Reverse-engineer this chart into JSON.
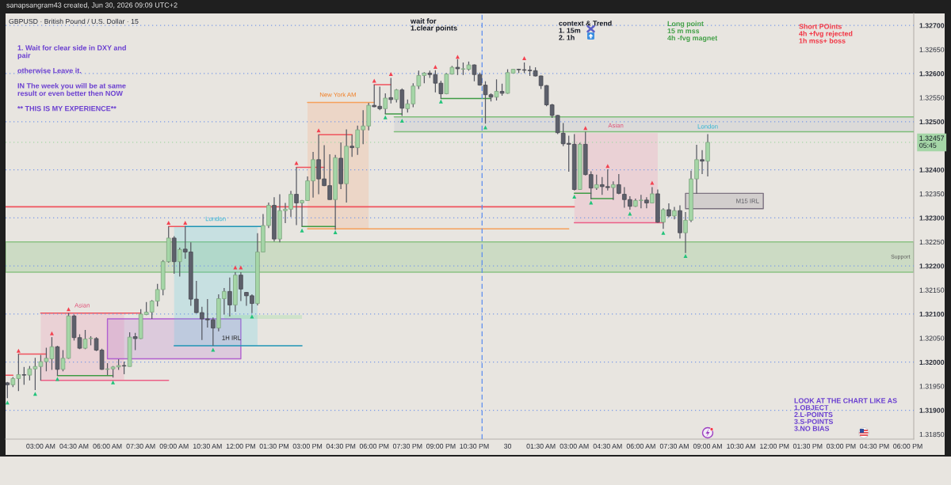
{
  "chart_data": {
    "type": "candlestick",
    "title": "GBPUSD · British Pound / U.S. Dollar · 15",
    "x": [
      "2026-06-29T01:30",
      "2026-06-29T01:45",
      "2026-06-29T02:00",
      "2026-06-29T02:15",
      "2026-06-29T02:30",
      "2026-06-29T02:45",
      "2026-06-29T03:00",
      "2026-06-29T03:15",
      "2026-06-29T03:30",
      "2026-06-29T03:45",
      "2026-06-29T04:00",
      "2026-06-29T04:15",
      "2026-06-29T04:30",
      "2026-06-29T04:45",
      "2026-06-29T05:00",
      "2026-06-29T05:15",
      "2026-06-29T05:30",
      "2026-06-29T05:45",
      "2026-06-29T06:00",
      "2026-06-29T06:15",
      "2026-06-29T06:30",
      "2026-06-29T06:45",
      "2026-06-29T07:00",
      "2026-06-29T07:15",
      "2026-06-29T07:30",
      "2026-06-29T07:45",
      "2026-06-29T08:00",
      "2026-06-29T08:15",
      "2026-06-29T08:30",
      "2026-06-29T08:45",
      "2026-06-29T09:00",
      "2026-06-29T09:15",
      "2026-06-29T09:30",
      "2026-06-29T09:45",
      "2026-06-29T10:00",
      "2026-06-29T10:15",
      "2026-06-29T10:30",
      "2026-06-29T10:45",
      "2026-06-29T11:00",
      "2026-06-29T11:15",
      "2026-06-29T11:30",
      "2026-06-29T11:45",
      "2026-06-29T12:00",
      "2026-06-29T12:15",
      "2026-06-29T12:30",
      "2026-06-29T12:45",
      "2026-06-29T13:00",
      "2026-06-29T13:15",
      "2026-06-29T13:30",
      "2026-06-29T13:45",
      "2026-06-29T14:00",
      "2026-06-29T14:15",
      "2026-06-29T14:30",
      "2026-06-29T14:45",
      "2026-06-29T15:00",
      "2026-06-29T15:15",
      "2026-06-29T15:30",
      "2026-06-29T15:45",
      "2026-06-29T16:00",
      "2026-06-29T16:15",
      "2026-06-29T16:30",
      "2026-06-29T16:45",
      "2026-06-29T17:00",
      "2026-06-29T17:15",
      "2026-06-29T17:30",
      "2026-06-29T17:45",
      "2026-06-29T18:00",
      "2026-06-29T18:15",
      "2026-06-29T18:30",
      "2026-06-29T18:45",
      "2026-06-29T19:00",
      "2026-06-29T19:15",
      "2026-06-29T19:30",
      "2026-06-29T19:45",
      "2026-06-29T20:00",
      "2026-06-29T20:15",
      "2026-06-29T20:30",
      "2026-06-29T20:45",
      "2026-06-29T21:00",
      "2026-06-29T21:15",
      "2026-06-29T21:30",
      "2026-06-29T21:45",
      "2026-06-29T22:00",
      "2026-06-29T22:15",
      "2026-06-29T22:30",
      "2026-06-29T22:45",
      "2026-06-29T23:00",
      "2026-06-29T23:15",
      "2026-06-29T23:30",
      "2026-06-29T23:45",
      "2026-06-30T00:00",
      "2026-06-30T00:15",
      "2026-06-30T00:30",
      "2026-06-30T00:45",
      "2026-06-30T01:00",
      "2026-06-30T01:15",
      "2026-06-30T01:30",
      "2026-06-30T01:45",
      "2026-06-30T02:00",
      "2026-06-30T02:15",
      "2026-06-30T02:30",
      "2026-06-30T02:45",
      "2026-06-30T03:00",
      "2026-06-30T03:15",
      "2026-06-30T03:30",
      "2026-06-30T03:45",
      "2026-06-30T04:00",
      "2026-06-30T04:15",
      "2026-06-30T04:30",
      "2026-06-30T04:45",
      "2026-06-30T05:00",
      "2026-06-30T05:15",
      "2026-06-30T05:30",
      "2026-06-30T05:45",
      "2026-06-30T06:00",
      "2026-06-30T06:15",
      "2026-06-30T06:30",
      "2026-06-30T06:45",
      "2026-06-30T07:00",
      "2026-06-30T07:15",
      "2026-06-30T07:30",
      "2026-06-30T07:45",
      "2026-06-30T08:00",
      "2026-06-30T08:15",
      "2026-06-30T08:30",
      "2026-06-30T08:45",
      "2026-06-30T09:00"
    ],
    "ohlc": [
      [
        1.31957,
        1.31959,
        1.31925,
        1.31953
      ],
      [
        1.31953,
        1.31969,
        1.31948,
        1.31966
      ],
      [
        1.31966,
        1.32017,
        1.3194,
        1.31974
      ],
      [
        1.31974,
        1.3199,
        1.31953,
        1.31973
      ],
      [
        1.31973,
        1.31992,
        1.31962,
        1.31986
      ],
      [
        1.31986,
        1.32009,
        1.31942,
        1.31991
      ],
      [
        1.31991,
        1.32015,
        1.31962,
        1.32001
      ],
      [
        1.32001,
        1.3203,
        1.31981,
        1.32008
      ],
      [
        1.32007,
        1.32052,
        1.31984,
        1.32032
      ],
      [
        1.32032,
        1.32034,
        1.31972,
        1.31985
      ],
      [
        1.31985,
        1.32025,
        1.31981,
        1.32008
      ],
      [
        1.32008,
        1.32102,
        1.32007,
        1.32096
      ],
      [
        1.32096,
        1.32099,
        1.32045,
        1.32051
      ],
      [
        1.32051,
        1.32058,
        1.32027,
        1.32029
      ],
      [
        1.32029,
        1.32067,
        1.32027,
        1.32048
      ],
      [
        1.32049,
        1.32054,
        1.32035,
        1.3205
      ],
      [
        1.32049,
        1.32052,
        1.32023,
        1.32025
      ],
      [
        1.32025,
        1.32028,
        1.31984,
        1.31985
      ],
      [
        1.31985,
        1.31998,
        1.31973,
        1.31986
      ],
      [
        1.31986,
        1.31992,
        1.31968,
        1.3199
      ],
      [
        1.3199,
        1.32006,
        1.31984,
        1.31993
      ],
      [
        1.31993,
        1.32001,
        1.31975,
        1.31992
      ],
      [
        1.31991,
        1.32062,
        1.31991,
        1.32052
      ],
      [
        1.32053,
        1.32061,
        1.32025,
        1.32049
      ],
      [
        1.32049,
        1.3211,
        1.32048,
        1.321
      ],
      [
        1.32099,
        1.32125,
        1.32098,
        1.32104
      ],
      [
        1.32104,
        1.32129,
        1.3209,
        1.32127
      ],
      [
        1.32127,
        1.32163,
        1.32116,
        1.32151
      ],
      [
        1.32151,
        1.32212,
        1.32139,
        1.32209
      ],
      [
        1.32209,
        1.32282,
        1.32207,
        1.32258
      ],
      [
        1.32258,
        1.32262,
        1.32184,
        1.32209
      ],
      [
        1.32209,
        1.32238,
        1.32178,
        1.32234
      ],
      [
        1.32235,
        1.32282,
        1.32215,
        1.32229
      ],
      [
        1.32229,
        1.32249,
        1.32117,
        1.32131
      ],
      [
        1.32131,
        1.32169,
        1.32102,
        1.32103
      ],
      [
        1.32103,
        1.32115,
        1.32046,
        1.3209
      ],
      [
        1.3209,
        1.32131,
        1.32072,
        1.32088
      ],
      [
        1.32088,
        1.32093,
        1.32034,
        1.32071
      ],
      [
        1.32071,
        1.32141,
        1.32064,
        1.32132
      ],
      [
        1.32132,
        1.32154,
        1.32099,
        1.32147
      ],
      [
        1.32147,
        1.32176,
        1.32095,
        1.32119
      ],
      [
        1.32119,
        1.32187,
        1.32105,
        1.32181
      ],
      [
        1.32181,
        1.32187,
        1.32127,
        1.32152
      ],
      [
        1.32145,
        1.32146,
        1.32117,
        1.32138
      ],
      [
        1.32138,
        1.32141,
        1.32102,
        1.32122
      ],
      [
        1.32122,
        1.32268,
        1.32118,
        1.32229
      ],
      [
        1.32229,
        1.32308,
        1.32229,
        1.32284
      ],
      [
        1.32284,
        1.32332,
        1.32279,
        1.32326
      ],
      [
        1.32326,
        1.32343,
        1.32251,
        1.32256
      ],
      [
        1.32256,
        1.32349,
        1.32249,
        1.32315
      ],
      [
        1.32315,
        1.32331,
        1.32289,
        1.32318
      ],
      [
        1.32318,
        1.32356,
        1.32302,
        1.32349
      ],
      [
        1.32349,
        1.32405,
        1.32285,
        1.32331
      ],
      [
        1.32331,
        1.32337,
        1.32282,
        1.32336
      ],
      [
        1.32336,
        1.32386,
        1.32335,
        1.32377
      ],
      [
        1.32377,
        1.32437,
        1.32342,
        1.32421
      ],
      [
        1.32421,
        1.32473,
        1.32349,
        1.32381
      ],
      [
        1.32381,
        1.32451,
        1.32366,
        1.32367
      ],
      [
        1.32367,
        1.32432,
        1.32338,
        1.32338
      ],
      [
        1.32338,
        1.32431,
        1.32275,
        1.32425
      ],
      [
        1.32424,
        1.32457,
        1.3236,
        1.32371
      ],
      [
        1.32371,
        1.32484,
        1.32332,
        1.32449
      ],
      [
        1.32449,
        1.32473,
        1.32427,
        1.32446
      ],
      [
        1.32446,
        1.32492,
        1.32431,
        1.32483
      ],
      [
        1.32483,
        1.32524,
        1.32453,
        1.32491
      ],
      [
        1.32491,
        1.32539,
        1.32482,
        1.32534
      ],
      [
        1.32534,
        1.32577,
        1.3253,
        1.32531
      ],
      [
        1.32532,
        1.32573,
        1.32524,
        1.32527
      ],
      [
        1.32527,
        1.32559,
        1.32516,
        1.32549
      ],
      [
        1.3255,
        1.32591,
        1.32538,
        1.32546
      ],
      [
        1.32546,
        1.32568,
        1.3254,
        1.32566
      ],
      [
        1.32566,
        1.32569,
        1.32512,
        1.32528
      ],
      [
        1.32527,
        1.32546,
        1.32519,
        1.32537
      ],
      [
        1.32537,
        1.3258,
        1.3253,
        1.32574
      ],
      [
        1.32574,
        1.32606,
        1.32568,
        1.32596
      ],
      [
        1.32596,
        1.32603,
        1.3258,
        1.32601
      ],
      [
        1.32601,
        1.32606,
        1.32591,
        1.32598
      ],
      [
        1.32598,
        1.32607,
        1.32561,
        1.3258
      ],
      [
        1.3258,
        1.32585,
        1.32548,
        1.32558
      ],
      [
        1.32558,
        1.32601,
        1.32557,
        1.32599
      ],
      [
        1.32599,
        1.32616,
        1.32598,
        1.32613
      ],
      [
        1.32613,
        1.3263,
        1.32597,
        1.3261
      ],
      [
        1.32609,
        1.32623,
        1.32597,
        1.3261
      ],
      [
        1.32609,
        1.32625,
        1.32606,
        1.32618
      ],
      [
        1.32618,
        1.32619,
        1.32584,
        1.32598
      ],
      [
        1.32598,
        1.32602,
        1.32575,
        1.32576
      ],
      [
        1.32576,
        1.32584,
        1.32496,
        1.32556
      ],
      [
        1.32556,
        1.32559,
        1.32542,
        1.32551
      ],
      [
        1.32551,
        1.32588,
        1.32544,
        1.32563
      ],
      [
        1.32563,
        1.32579,
        1.32554,
        1.32559
      ],
      [
        1.32559,
        1.32609,
        1.32558,
        1.32602
      ],
      [
        1.32601,
        1.32609,
        1.32601,
        1.32609
      ],
      [
        1.32609,
        1.3261,
        1.32601,
        1.32608
      ],
      [
        1.32608,
        1.32623,
        1.32601,
        1.32607
      ],
      [
        1.32607,
        1.32616,
        1.32595,
        1.32606
      ],
      [
        1.32606,
        1.32613,
        1.32594,
        1.32595
      ],
      [
        1.32595,
        1.32596,
        1.32568,
        1.32575
      ],
      [
        1.32575,
        1.32576,
        1.32532,
        1.32535
      ],
      [
        1.32535,
        1.32537,
        1.32508,
        1.32513
      ],
      [
        1.32513,
        1.32514,
        1.32474,
        1.32477
      ],
      [
        1.32476,
        1.32497,
        1.32449,
        1.32454
      ],
      [
        1.32455,
        1.32471,
        1.32396,
        1.32453
      ],
      [
        1.32453,
        1.32474,
        1.32357,
        1.32359
      ],
      [
        1.32359,
        1.32456,
        1.32358,
        1.32453
      ],
      [
        1.32453,
        1.32479,
        1.32388,
        1.3239
      ],
      [
        1.3239,
        1.32397,
        1.32339,
        1.32362
      ],
      [
        1.32362,
        1.3239,
        1.32358,
        1.32369
      ],
      [
        1.32369,
        1.32385,
        1.32348,
        1.32365
      ],
      [
        1.32365,
        1.32401,
        1.32357,
        1.32363
      ],
      [
        1.32363,
        1.32376,
        1.32337,
        1.32369
      ],
      [
        1.32369,
        1.32391,
        1.32349,
        1.32351
      ],
      [
        1.32349,
        1.32364,
        1.32321,
        1.32338
      ],
      [
        1.32338,
        1.32345,
        1.32317,
        1.32324
      ],
      [
        1.32324,
        1.3234,
        1.32323,
        1.32336
      ],
      [
        1.32336,
        1.32348,
        1.3232,
        1.32337
      ],
      [
        1.32337,
        1.32343,
        1.3232,
        1.32331
      ],
      [
        1.32331,
        1.32364,
        1.3233,
        1.3235
      ],
      [
        1.3235,
        1.32359,
        1.3229,
        1.32291
      ],
      [
        1.32291,
        1.3232,
        1.32277,
        1.32317
      ],
      [
        1.32317,
        1.3233,
        1.32301,
        1.32304
      ],
      [
        1.32304,
        1.32323,
        1.32297,
        1.32315
      ],
      [
        1.32315,
        1.32326,
        1.32257,
        1.32269
      ],
      [
        1.32269,
        1.32312,
        1.32227,
        1.32295
      ],
      [
        1.32295,
        1.32398,
        1.32291,
        1.32381
      ],
      [
        1.32381,
        1.32452,
        1.3235,
        1.32421
      ],
      [
        1.32421,
        1.32441,
        1.32391,
        1.32418
      ],
      [
        1.32418,
        1.32474,
        1.32386,
        1.32457
      ]
    ],
    "colors": [
      "#5d606b",
      "#a5d6a7",
      "#a5d6a7",
      "#5d606b",
      "#a5d6a7",
      "#a5d6a7",
      "#a5d6a7",
      "#a5d6a7",
      "#a5d6a7",
      "#5d606b",
      "#a5d6a7",
      "#a5d6a7",
      "#5d606b",
      "#5d606b",
      "#a5d6a7",
      "#a5d6a7",
      "#5d606b",
      "#5d606b",
      "#a5d6a7",
      "#a5d6a7",
      "#a5d6a7",
      "#5d606b",
      "#a5d6a7",
      "#5d606b",
      "#a5d6a7",
      "#a5d6a7",
      "#a5d6a7",
      "#a5d6a7",
      "#a5d6a7",
      "#a5d6a7",
      "#5d606b",
      "#a5d6a7",
      "#5d606b",
      "#5d606b",
      "#5d606b",
      "#5d606b",
      "#5d606b",
      "#5d606b",
      "#a5d6a7",
      "#a5d6a7",
      "#5d606b",
      "#a5d6a7",
      "#5d606b",
      "#5d606b",
      "#5d606b",
      "#a5d6a7",
      "#a5d6a7",
      "#a5d6a7",
      "#5d606b",
      "#a5d6a7",
      "#a5d6a7",
      "#a5d6a7",
      "#5d606b",
      "#a5d6a7",
      "#a5d6a7",
      "#a5d6a7",
      "#5d606b",
      "#5d606b",
      "#5d606b",
      "#a5d6a7",
      "#5d606b",
      "#a5d6a7",
      "#5d606b",
      "#a5d6a7",
      "#a5d6a7",
      "#a5d6a7",
      "#5d606b",
      "#5d606b",
      "#a5d6a7",
      "#5d606b",
      "#a5d6a7",
      "#5d606b",
      "#a5d6a7",
      "#a5d6a7",
      "#a5d6a7",
      "#a5d6a7",
      "#5d606b",
      "#5d606b",
      "#5d606b",
      "#a5d6a7",
      "#a5d6a7",
      "#5d606b",
      "#a5d6a7",
      "#a5d6a7",
      "#5d606b",
      "#5d606b",
      "#5d606b",
      "#5d606b",
      "#a5d6a7",
      "#5d606b",
      "#a5d6a7",
      "#a5d6a7",
      "#5d606b",
      "#5d606b",
      "#5d606b",
      "#5d606b",
      "#5d606b",
      "#5d606b",
      "#5d606b",
      "#5d606b",
      "#5d606b",
      "#5d606b",
      "#5d606b",
      "#a5d6a7",
      "#5d606b",
      "#5d606b",
      "#a5d6a7",
      "#5d606b",
      "#5d606b",
      "#a5d6a7",
      "#5d606b",
      "#5d606b",
      "#5d606b",
      "#a5d6a7",
      "#a5d6a7",
      "#5d606b",
      "#a5d6a7",
      "#5d606b",
      "#a5d6a7",
      "#5d606b",
      "#a5d6a7",
      "#5d606b",
      "#a5d6a7",
      "#a5d6a7",
      "#a5d6a7",
      "#5d606b",
      "#a5d6a7"
    ],
    "series": [
      {
        "type": "line",
        "x": [
          "2026-06-29T03:00",
          "2026-06-29T06:45"
        ],
        "values": [
          null,
          null
        ],
        "lower": [
          1.31962,
          1.31962
        ],
        "upper": [
          1.32101,
          1.32101
        ],
        "color": "#f781a9"
      },
      {
        "type": "line",
        "x": [
          "2026-06-29T06:00",
          "2026-06-29T12:00"
        ],
        "values": [
          null,
          null
        ],
        "lower": [
          1.32007,
          1.32007
        ],
        "upper": [
          1.3209,
          1.3209
        ],
        "color": "#b15fcf",
        "line_style": "solid"
      },
      {
        "type": "line",
        "x": [
          "2026-06-29T09:00",
          "2026-06-29T12:45"
        ],
        "values": [
          null,
          null
        ],
        "lower": [
          1.32034,
          1.32034
        ],
        "upper": [
          1.32282,
          1.32282
        ],
        "color": "#48cce5"
      },
      {
        "type": "line",
        "x": [
          "2026-06-29T11:15",
          "2026-06-29T14:45"
        ],
        "values": [
          null,
          null
        ],
        "lower": [
          1.3209,
          1.3209
        ],
        "upper": [
          1.32098,
          1.32098
        ],
        "color": "#6bd66d"
      },
      {
        "type": "line",
        "x": [
          "2026-06-29T15:00",
          "2026-06-29T17:45"
        ],
        "values": [
          null,
          null
        ],
        "lower": [
          1.32277,
          1.32277
        ],
        "upper": [
          1.3254,
          1.3254
        ],
        "color": "#ff9a63"
      },
      {
        "type": "line",
        "x": [
          "2026-06-29T18:54",
          "2026-06-30T18:16"
        ],
        "values": [
          null,
          null
        ],
        "lower": [
          1.32479,
          1.32479
        ],
        "upper": [
          1.3251,
          1.3251
        ],
        "color": "#acaebd"
      },
      {
        "type": "line",
        "x": [
          "2026-06-30T03:00",
          "2026-06-30T06:45"
        ],
        "values": [
          null,
          null
        ],
        "lower": [
          1.3229,
          1.3229
        ],
        "upper": [
          1.32476,
          1.32476
        ],
        "color": "#f781a9"
      },
      {
        "type": "line",
        "x": [
          "2026-06-30T08:00",
          "2026-06-30T11:30"
        ],
        "values": [
          null,
          null
        ],
        "lower": [
          1.32319,
          1.32319
        ],
        "upper": [
          1.32351,
          1.32351
        ],
        "color": "#7c7280",
        "line_style": "solid"
      },
      {
        "type": "line",
        "x": [
          "2026-06-29T01:25",
          "2026-06-29T01:45"
        ],
        "values": [
          1.31973,
          1.31973
        ],
        "color": "#f0525c"
      },
      {
        "type": "line",
        "x": [
          "2026-06-29T02:00",
          "2026-06-29T03:15"
        ],
        "values": [
          1.32017,
          1.32017
        ],
        "color": "#f0525c"
      },
      {
        "type": "line",
        "x": [
          "2026-06-29T03:00",
          "2026-06-29T07:30"
        ],
        "values": [
          1.32102,
          1.32102
        ],
        "color": "#f0525c"
      },
      {
        "type": "line",
        "x": [
          "2026-06-29T03:00",
          "2026-06-29T08:45"
        ],
        "values": [
          1.31962,
          1.31962
        ],
        "color": "#ec5f86"
      },
      {
        "type": "line",
        "x": [
          "2026-06-29T03:45",
          "2026-06-29T06:15"
        ],
        "values": [
          1.31972,
          1.31972
        ],
        "color": "#3f9b45"
      },
      {
        "type": "line",
        "x": [
          "2026-06-29T08:45",
          "2026-06-29T09:30"
        ],
        "values": [
          1.32282,
          1.32282
        ],
        "color": "#f0525c"
      },
      {
        "type": "line",
        "x": [
          "2026-06-29T09:30",
          "2026-06-29T13:00"
        ],
        "values": [
          1.32282,
          1.32282
        ],
        "color": "#1f95b5"
      },
      {
        "type": "line",
        "x": [
          "2026-06-29T09:00",
          "2026-06-29T14:45"
        ],
        "values": [
          1.32034,
          1.32034
        ],
        "color": "#1f95b5"
      },
      {
        "type": "line",
        "x": [
          "2026-06-29T14:30",
          "2026-06-29T15:45"
        ],
        "values": [
          1.32405,
          1.32405
        ],
        "color": "#f0525c"
      },
      {
        "type": "line",
        "x": [
          "2026-06-29T15:30",
          "2026-06-29T17:00"
        ],
        "values": [
          1.32473,
          1.32473
        ],
        "color": "#f0525c"
      },
      {
        "type": "line",
        "x": [
          "2026-06-29T14:45",
          "2026-06-29T16:15"
        ],
        "values": [
          1.32282,
          1.32282
        ],
        "color": "#3f9b45"
      },
      {
        "type": "line",
        "x": [
          "2026-06-29T15:00",
          "2026-06-29T18:00"
        ],
        "values": [
          1.3254,
          1.3254
        ],
        "color": "#f5a05a"
      },
      {
        "type": "line",
        "x": [
          "2026-06-29T15:00",
          "2026-06-30T02:45"
        ],
        "values": [
          1.32277,
          1.32277
        ],
        "color": "#f5a05a"
      },
      {
        "type": "line",
        "x": [
          "2026-06-29T01:25",
          "2026-06-30T03:00"
        ],
        "values": [
          1.32323,
          1.32323
        ],
        "color": "#f0525c"
      },
      {
        "type": "line",
        "x": [
          "2026-06-29T18:00",
          "2026-06-29T18:45"
        ],
        "values": [
          1.32577,
          1.32577
        ],
        "color": "#f0525c"
      },
      {
        "type": "line",
        "x": [
          "2026-06-29T18:30",
          "2026-06-29T19:15"
        ],
        "values": [
          1.32516,
          1.32516
        ],
        "color": "#3f9b45"
      },
      {
        "type": "line",
        "x": [
          "2026-06-29T21:00",
          "2026-06-29T23:15"
        ],
        "values": [
          1.32548,
          1.32548
        ],
        "color": "#3f9b45"
      },
      {
        "type": "line",
        "x": [
          "2026-06-29T18:54",
          "2026-06-30T18:16"
        ],
        "values": [
          1.3251,
          1.3251
        ],
        "color": "#7dbd78"
      },
      {
        "type": "line",
        "x": [
          "2026-06-29T18:54",
          "2026-06-30T18:16"
        ],
        "values": [
          1.32479,
          1.32479
        ],
        "color": "#7dbd78"
      },
      {
        "type": "line",
        "x": [
          "2026-06-30T03:00",
          "2026-06-30T03:45"
        ],
        "values": [
          1.32351,
          1.32351
        ],
        "color": "#3f9b45"
      },
      {
        "type": "line",
        "x": [
          "2026-06-30T03:45",
          "2026-06-30T04:45"
        ],
        "values": [
          1.3234,
          1.3234
        ],
        "color": "#3f9b45"
      },
      {
        "type": "line",
        "x": [
          "2026-06-30T03:00",
          "2026-06-30T07:00"
        ],
        "values": [
          1.3229,
          1.3229
        ],
        "color": "#ec5f86"
      },
      {
        "type": "scatter",
        "marker": "triangle",
        "color": "#f44250",
        "x": [
          "2026-06-29T02:00",
          "2026-06-29T03:30",
          "2026-06-29T04:15",
          "2026-06-29T08:45",
          "2026-06-29T09:30",
          "2026-06-29T11:45",
          "2026-06-29T12:00",
          "2026-06-29T14:30",
          "2026-06-29T15:30",
          "2026-06-29T18:00",
          "2026-06-29T18:45",
          "2026-06-29T20:45",
          "2026-06-29T21:45",
          "2026-06-30T00:45",
          "2026-06-30T03:30",
          "2026-06-30T04:30",
          "2026-06-30T06:30"
        ],
        "values": [
          1.32024,
          1.3206,
          1.3211,
          1.3229,
          1.3229,
          1.32197,
          1.32197,
          1.32414,
          1.32482,
          1.32585,
          1.32599,
          1.32614,
          1.32635,
          1.32632,
          1.32487,
          1.32408,
          1.32373
        ]
      },
      {
        "type": "scatter",
        "marker": "triangle",
        "color": "#22c37a",
        "x": [
          "2026-06-29T01:30",
          "2026-06-29T02:45",
          "2026-06-29T03:45",
          "2026-06-29T06:15",
          "2026-06-29T10:45",
          "2026-06-29T12:30",
          "2026-06-29T14:45",
          "2026-06-29T16:15",
          "2026-06-29T18:30",
          "2026-06-29T19:15",
          "2026-06-29T21:00",
          "2026-06-29T23:00",
          "2026-06-30T03:00",
          "2026-06-30T03:45",
          "2026-06-30T05:30",
          "2026-06-30T07:00",
          "2026-06-30T08:00"
        ],
        "values": [
          1.31916,
          1.31934,
          1.31965,
          1.31958,
          1.32026,
          1.32095,
          1.32274,
          1.3227,
          1.32509,
          1.32502,
          1.32542,
          1.32488,
          1.32344,
          1.32332,
          1.32309,
          1.32269,
          1.32221
        ]
      }
    ],
    "bands": [
      {
        "axis": "y",
        "from": 1.32187,
        "to": 1.3225,
        "label": "Support",
        "color": "#8cc284"
      }
    ],
    "ref_lines": [
      {
        "axis": "y",
        "value": 1.327,
        "color": "#7b9be6",
        "line_style": "dotted"
      },
      {
        "axis": "y",
        "value": 1.326,
        "color": "#7b9be6",
        "line_style": "dotted"
      },
      {
        "axis": "y",
        "value": 1.325,
        "color": "#7b9be6",
        "line_style": "dotted"
      },
      {
        "axis": "y",
        "value": 1.324,
        "color": "#7b9be6",
        "line_style": "dotted"
      },
      {
        "axis": "y",
        "value": 1.323,
        "color": "#7b9be6",
        "line_style": "dotted"
      },
      {
        "axis": "y",
        "value": 1.322,
        "color": "#7b9be6",
        "line_style": "dotted"
      },
      {
        "axis": "y",
        "value": 1.321,
        "color": "#7b9be6",
        "line_style": "dotted"
      },
      {
        "axis": "y",
        "value": 1.32,
        "color": "#7b9be6",
        "line_style": "dotted"
      },
      {
        "axis": "y",
        "value": 1.319,
        "color": "#7b9be6",
        "line_style": "dotted"
      },
      {
        "axis": "x",
        "value": "2026-06-29T22:51",
        "color": "#5b8def",
        "line_style": "dashed"
      },
      {
        "axis": "y",
        "value": 1.32457,
        "label": "1.32457\n05:45",
        "color": "#a5d6a7",
        "line_style": "dotted"
      }
    ],
    "annotations": [
      "sanapsangram43 created, Jun 30, 2026 09:09 UTC+2",
      "1. Wait for clear side in DXY and\npair\n\notherwise Leave it.\n\nIN The week you will be at same\nresult or even better then NOW\n\n** THIS IS MY EXPERIENCE**",
      "wait for\n1.clear points",
      "context & Trend\n1. 15m\n2. 1h",
      "Long point\n15 m mss\n4h -fvg magnet",
      "Short POints\n4h +fvg rejected\n1h mss+ boss",
      "LOOK AT THE CHART LIKE AS\n1.OBJECT\n2.L-POINTS\n3.S-POINTS\n3.NO BIAS",
      "1H IRL",
      "M15 IRL",
      {
        "text": "Asian",
        "x": "2026-06-29T04:52",
        "y": 1.32102
      },
      {
        "text": "London",
        "x": "2026-06-29T10:52",
        "y": 1.32282
      },
      {
        "text": "New York AM",
        "x": "2026-06-29T16:22",
        "y": 1.3254
      },
      {
        "text": "Asian",
        "x": "2026-06-30T04:52",
        "y": 1.32476
      },
      {
        "text": "London",
        "x": "2026-06-30T09:00",
        "y": 1.32474
      }
    ],
    "xlim": [
      "2026-06-29T01:25",
      "2026-06-30T18:16"
    ],
    "ylim": [
      1.3184,
      1.32725
    ],
    "xticks": [
      {
        "value": "2026-06-29T03:00",
        "label": "03:00 AM"
      },
      {
        "value": "2026-06-29T04:30",
        "label": "04:30 AM"
      },
      {
        "value": "2026-06-29T06:00",
        "label": "06:00 AM"
      },
      {
        "value": "2026-06-29T07:30",
        "label": "07:30 AM"
      },
      {
        "value": "2026-06-29T09:00",
        "label": "09:00 AM"
      },
      {
        "value": "2026-06-29T10:30",
        "label": "10:30 AM"
      },
      {
        "value": "2026-06-29T12:00",
        "label": "12:00 PM"
      },
      {
        "value": "2026-06-29T13:30",
        "label": "01:30 PM"
      },
      {
        "value": "2026-06-29T15:00",
        "label": "03:00 PM"
      },
      {
        "value": "2026-06-29T16:30",
        "label": "04:30 PM"
      },
      {
        "value": "2026-06-29T18:00",
        "label": "06:00 PM"
      },
      {
        "value": "2026-06-29T19:30",
        "label": "07:30 PM"
      },
      {
        "value": "2026-06-29T21:00",
        "label": "09:00 PM"
      },
      {
        "value": "2026-06-29T22:30",
        "label": "10:30 PM"
      },
      {
        "value": "2026-06-30T00:00",
        "label": "30"
      },
      {
        "value": "2026-06-30T01:30",
        "label": "01:30 AM"
      },
      {
        "value": "2026-06-30T03:00",
        "label": "03:00 AM"
      },
      {
        "value": "2026-06-30T04:30",
        "label": "04:30 AM"
      },
      {
        "value": "2026-06-30T06:00",
        "label": "06:00 AM"
      },
      {
        "value": "2026-06-30T07:30",
        "label": "07:30 AM"
      },
      {
        "value": "2026-06-30T09:00",
        "label": "09:00 AM"
      },
      {
        "value": "2026-06-30T10:30",
        "label": "10:30 AM"
      },
      {
        "value": "2026-06-30T12:00",
        "label": "12:00 PM"
      },
      {
        "value": "2026-06-30T13:30",
        "label": "01:30 PM"
      },
      {
        "value": "2026-06-30T15:00",
        "label": "03:00 PM"
      },
      {
        "value": "2026-06-30T16:30",
        "label": "04:30 PM"
      },
      {
        "value": "2026-06-30T18:00",
        "label": "06:00 PM"
      }
    ],
    "yticks": [
      {
        "value": 1.327,
        "label": "1.32700"
      },
      {
        "value": 1.3265,
        "label": "1.32650"
      },
      {
        "value": 1.326,
        "label": "1.32600"
      },
      {
        "value": 1.3255,
        "label": "1.32550"
      },
      {
        "value": 1.325,
        "label": "1.32500"
      },
      {
        "value": 1.324,
        "label": "1.32400"
      },
      {
        "value": 1.3235,
        "label": "1.32350"
      },
      {
        "value": 1.323,
        "label": "1.32300"
      },
      {
        "value": 1.3225,
        "label": "1.32250"
      },
      {
        "value": 1.322,
        "label": "1.32200"
      },
      {
        "value": 1.3215,
        "label": "1.32150"
      },
      {
        "value": 1.321,
        "label": "1.32100"
      },
      {
        "value": 1.3205,
        "label": "1.32050"
      },
      {
        "value": 1.32,
        "label": "1.32000"
      },
      {
        "value": 1.3195,
        "label": "1.31950"
      },
      {
        "value": 1.319,
        "label": "1.31900"
      },
      {
        "value": 1.3185,
        "label": "1.31850"
      }
    ]
  }
}
